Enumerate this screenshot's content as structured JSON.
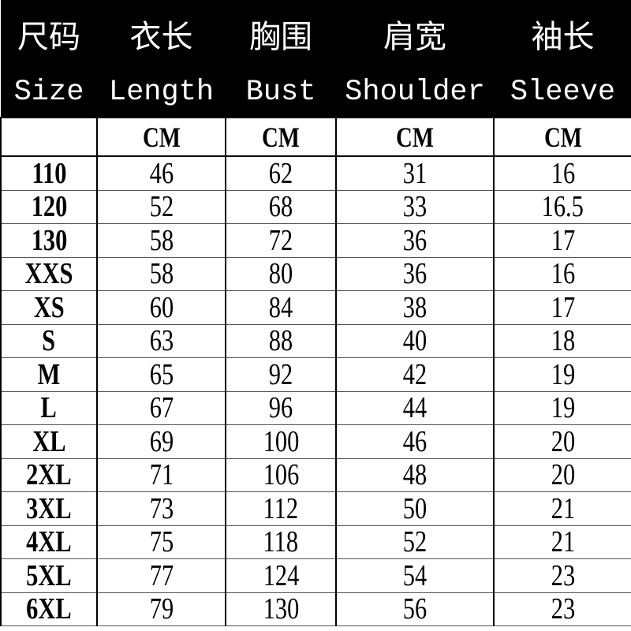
{
  "header": {
    "zh": [
      "尺码",
      "衣长",
      "胸围",
      "肩宽",
      "袖长"
    ],
    "en": [
      "Size",
      "Length",
      "Bust",
      "Shoulder",
      "Sleeve"
    ]
  },
  "units": [
    "",
    "CM",
    "CM",
    "CM",
    "CM"
  ],
  "rows": [
    [
      "110",
      "46",
      "62",
      "31",
      "16"
    ],
    [
      "120",
      "52",
      "68",
      "33",
      "16.5"
    ],
    [
      "130",
      "58",
      "72",
      "36",
      "17"
    ],
    [
      "XXS",
      "58",
      "80",
      "36",
      "16"
    ],
    [
      "XS",
      "60",
      "84",
      "38",
      "17"
    ],
    [
      "S",
      "63",
      "88",
      "40",
      "18"
    ],
    [
      "M",
      "65",
      "92",
      "42",
      "19"
    ],
    [
      "L",
      "67",
      "96",
      "44",
      "19"
    ],
    [
      "XL",
      "69",
      "100",
      "46",
      "20"
    ],
    [
      "2XL",
      "71",
      "106",
      "48",
      "20"
    ],
    [
      "3XL",
      "73",
      "112",
      "50",
      "21"
    ],
    [
      "4XL",
      "75",
      "118",
      "52",
      "21"
    ],
    [
      "5XL",
      "77",
      "124",
      "54",
      "23"
    ],
    [
      "6XL",
      "79",
      "130",
      "56",
      "23"
    ]
  ]
}
